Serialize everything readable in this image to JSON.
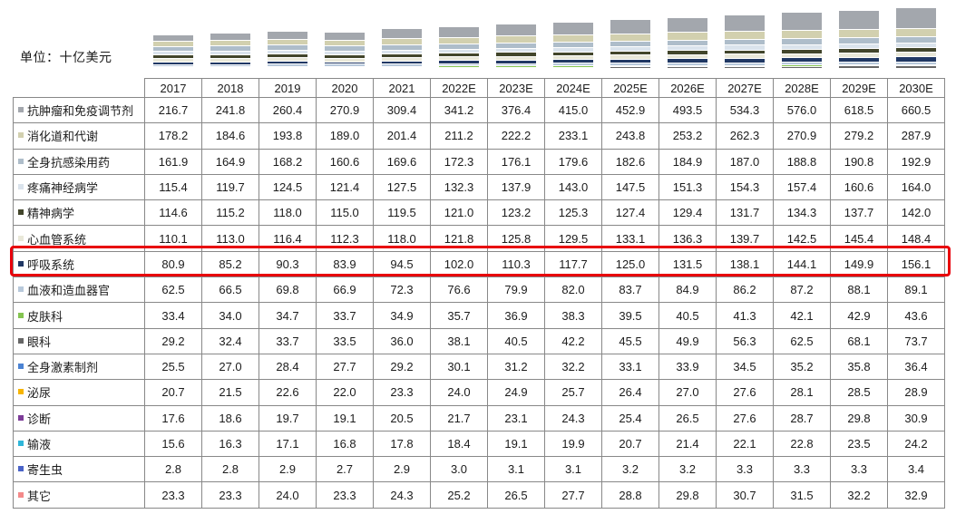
{
  "unit_label": "单位：十亿美元",
  "highlight": {
    "row": "呼吸系统",
    "color": "#e8000b"
  },
  "chart_data": {
    "type": "bar",
    "stacked": true,
    "title": "",
    "unit_label": "单位：十亿美元",
    "legend_position": "table-rows",
    "grid": false,
    "categories": [
      "2017",
      "2018",
      "2019",
      "2020",
      "2021",
      "2022E",
      "2023E",
      "2024E",
      "2025E",
      "2026E",
      "2027E",
      "2028E",
      "2029E",
      "2030E"
    ],
    "series": [
      {
        "name": "抗肿瘤和免疫调节剂",
        "color": "#a3a7ad",
        "values": [
          216.7,
          241.8,
          260.4,
          270.9,
          309.4,
          341.2,
          376.4,
          415.0,
          452.9,
          493.5,
          534.3,
          576.0,
          618.5,
          660.5
        ]
      },
      {
        "name": "消化道和代谢",
        "color": "#d2d0af",
        "values": [
          178.2,
          184.6,
          193.8,
          189.0,
          201.4,
          211.2,
          222.2,
          233.1,
          243.8,
          253.2,
          262.3,
          270.9,
          279.2,
          287.9
        ]
      },
      {
        "name": "全身抗感染用药",
        "color": "#aebdca",
        "values": [
          161.9,
          164.9,
          168.2,
          160.6,
          169.6,
          172.3,
          176.1,
          179.6,
          182.6,
          184.9,
          187.0,
          188.8,
          190.8,
          192.9
        ]
      },
      {
        "name": "疼痛神经病学",
        "color": "#dae3ec",
        "values": [
          115.4,
          119.7,
          124.5,
          121.4,
          127.5,
          132.3,
          137.9,
          143.0,
          147.5,
          151.3,
          154.3,
          157.4,
          160.6,
          164.0
        ]
      },
      {
        "name": "精神病学",
        "color": "#42452b",
        "values": [
          114.6,
          115.2,
          118.0,
          115.0,
          119.5,
          121.0,
          123.2,
          125.3,
          127.4,
          129.4,
          131.7,
          134.3,
          137.7,
          142.0
        ]
      },
      {
        "name": "心血管系统",
        "color": "#e9e8d9",
        "values": [
          110.1,
          113.0,
          116.4,
          112.3,
          118.0,
          121.8,
          125.8,
          129.5,
          133.1,
          136.3,
          139.7,
          142.5,
          145.4,
          148.4
        ]
      },
      {
        "name": "呼吸系统",
        "color": "#203864",
        "values": [
          80.9,
          85.2,
          90.3,
          83.9,
          94.5,
          102.0,
          110.3,
          117.7,
          125.0,
          131.5,
          138.1,
          144.1,
          149.9,
          156.1
        ]
      },
      {
        "name": "血液和造血器官",
        "color": "#b8c9db",
        "values": [
          62.5,
          66.5,
          69.8,
          66.9,
          72.3,
          76.6,
          79.9,
          82.0,
          83.7,
          84.9,
          86.2,
          87.2,
          88.1,
          89.1
        ]
      },
      {
        "name": "皮肤科",
        "color": "#84c450",
        "values": [
          33.4,
          34.0,
          34.7,
          33.7,
          34.9,
          35.7,
          36.9,
          38.3,
          39.5,
          40.5,
          41.3,
          42.1,
          42.9,
          43.6
        ]
      },
      {
        "name": "眼科",
        "color": "#666666",
        "values": [
          29.2,
          32.4,
          33.7,
          33.5,
          36.0,
          38.1,
          40.5,
          42.2,
          45.5,
          49.9,
          56.3,
          62.5,
          68.1,
          73.7
        ]
      },
      {
        "name": "全身激素制剂",
        "color": "#4b83d3",
        "values": [
          25.5,
          27.0,
          28.4,
          27.7,
          29.2,
          30.1,
          31.2,
          32.2,
          33.1,
          33.9,
          34.5,
          35.2,
          35.8,
          36.4
        ]
      },
      {
        "name": "泌尿",
        "color": "#f7b500",
        "values": [
          20.7,
          21.5,
          22.6,
          22.0,
          23.3,
          24.0,
          24.9,
          25.7,
          26.4,
          27.0,
          27.6,
          28.1,
          28.5,
          28.9
        ]
      },
      {
        "name": "诊断",
        "color": "#7d3c98",
        "values": [
          17.6,
          18.6,
          19.7,
          19.1,
          20.5,
          21.7,
          23.1,
          24.3,
          25.4,
          26.5,
          27.6,
          28.7,
          29.8,
          30.9
        ]
      },
      {
        "name": "输液",
        "color": "#2fb6d9",
        "values": [
          15.6,
          16.3,
          17.1,
          16.8,
          17.8,
          18.4,
          19.1,
          19.9,
          20.7,
          21.4,
          22.1,
          22.8,
          23.5,
          24.2
        ]
      },
      {
        "name": "寄生虫",
        "color": "#4a63c8",
        "values": [
          2.8,
          2.8,
          2.9,
          2.7,
          2.9,
          3.0,
          3.1,
          3.1,
          3.2,
          3.2,
          3.3,
          3.3,
          3.3,
          3.4
        ]
      },
      {
        "name": "其它",
        "color": "#f48a8a",
        "values": [
          23.3,
          23.3,
          24.0,
          23.3,
          24.3,
          25.2,
          26.5,
          27.7,
          28.8,
          29.8,
          30.7,
          31.5,
          32.2,
          32.9
        ]
      }
    ]
  }
}
